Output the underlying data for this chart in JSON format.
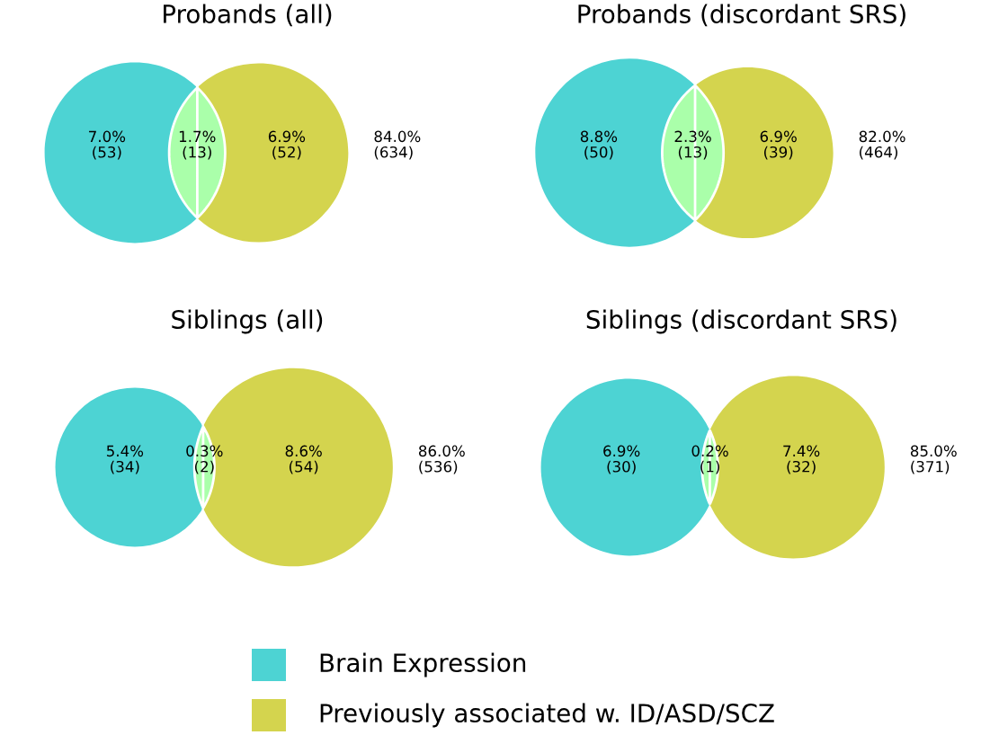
{
  "chart_data": [
    {
      "type": "other",
      "title": "Probands (all)",
      "categories": [
        null,
        null,
        null,
        null
      ],
      "values": [
        53,
        13,
        52,
        634
      ],
      "value_labels": [
        "7.0%\n(53)",
        "1.7%\n(13)",
        "6.9%\n(52)",
        "84.0%\n(634)"
      ],
      "colors": [
        "#4dd3d3",
        "#aaffaa",
        "#d4d44e",
        null
      ]
    },
    {
      "type": "other",
      "title": "Probands (discordant SRS)",
      "categories": [
        null,
        null,
        null,
        null
      ],
      "values": [
        50,
        13,
        39,
        464
      ],
      "value_labels": [
        "8.8%\n(50)",
        "2.3%\n(13)",
        "6.9%\n(39)",
        "82.0%\n(464)"
      ],
      "colors": [
        "#4dd3d3",
        "#aaffaa",
        "#d4d44e",
        null
      ]
    },
    {
      "type": "other",
      "title": "Siblings (all)",
      "categories": [
        null,
        null,
        null,
        null
      ],
      "values": [
        34,
        2,
        54,
        536
      ],
      "value_labels": [
        "5.4%\n(34)",
        "0.3%\n(2)",
        "8.6%\n(54)",
        "86.0%\n(536)"
      ],
      "colors": [
        "#4dd3d3",
        "#aaffaa",
        "#d4d44e",
        null
      ]
    },
    {
      "type": "other",
      "title": "Siblings (discordant SRS)",
      "categories": [
        null,
        null,
        null,
        null
      ],
      "values": [
        30,
        1,
        32,
        371
      ],
      "value_labels": [
        "6.9%\n(30)",
        "0.2%\n(1)",
        "7.4%\n(32)",
        "85.0%\n(371)"
      ],
      "colors": [
        "#4dd3d3",
        "#aaffaa",
        "#d4d44e",
        null
      ]
    },
    {
      "type": "other",
      "categories": [
        "Brain Expression",
        "Previously associated w. ID/ASD/SCZ"
      ],
      "colors": [
        "#4dd3d3",
        "#d4d44e"
      ]
    }
  ]
}
